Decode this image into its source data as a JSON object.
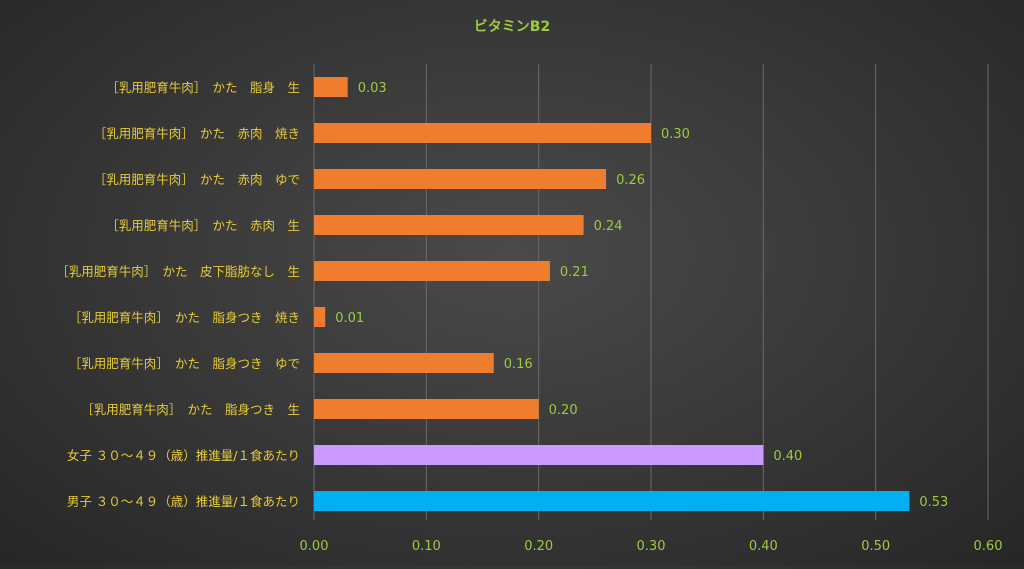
{
  "chart_data": {
    "type": "bar",
    "orientation": "horizontal",
    "title": "ビタミンB2",
    "categories": [
      "［乳用肥育牛肉］　かた　脂身　生",
      "［乳用肥育牛肉］　かた　赤肉　焼き",
      "［乳用肥育牛肉］　かた　赤肉　ゆで",
      "［乳用肥育牛肉］　かた　赤肉　生",
      "［乳用肥育牛肉］　かた　皮下脂肪なし　生",
      "［乳用肥育牛肉］　かた　脂身つき　焼き",
      "［乳用肥育牛肉］　かた　脂身つき　ゆで",
      "［乳用肥育牛肉］　かた　脂身つき　生",
      "女子 ３０～４９（歳）推進量/１食あたり",
      "男子 ３０～４９（歳）推進量/１食あたり"
    ],
    "values": [
      0.03,
      0.3,
      0.26,
      0.24,
      0.21,
      0.01,
      0.16,
      0.2,
      0.4,
      0.53
    ],
    "value_labels": [
      "0.03",
      "0.30",
      "0.26",
      "0.24",
      "0.21",
      "0.01",
      "0.16",
      "0.20",
      "0.40",
      "0.53"
    ],
    "bar_colors": [
      "#f07d2e",
      "#f07d2e",
      "#f07d2e",
      "#f07d2e",
      "#f07d2e",
      "#f07d2e",
      "#f07d2e",
      "#f07d2e",
      "#cc99ff",
      "#00b0f0"
    ],
    "xlim": [
      0,
      0.6
    ],
    "xticks": [
      "0.00",
      "0.10",
      "0.20",
      "0.30",
      "0.40",
      "0.50",
      "0.60"
    ],
    "grid": true,
    "legend": "none",
    "colors": {
      "title": "#9ccc3c",
      "category_label": "#e8cc34",
      "value_label": "#9ccc3c",
      "tick_label": "#9ccc3c",
      "grid": "#6a6a6a"
    }
  }
}
